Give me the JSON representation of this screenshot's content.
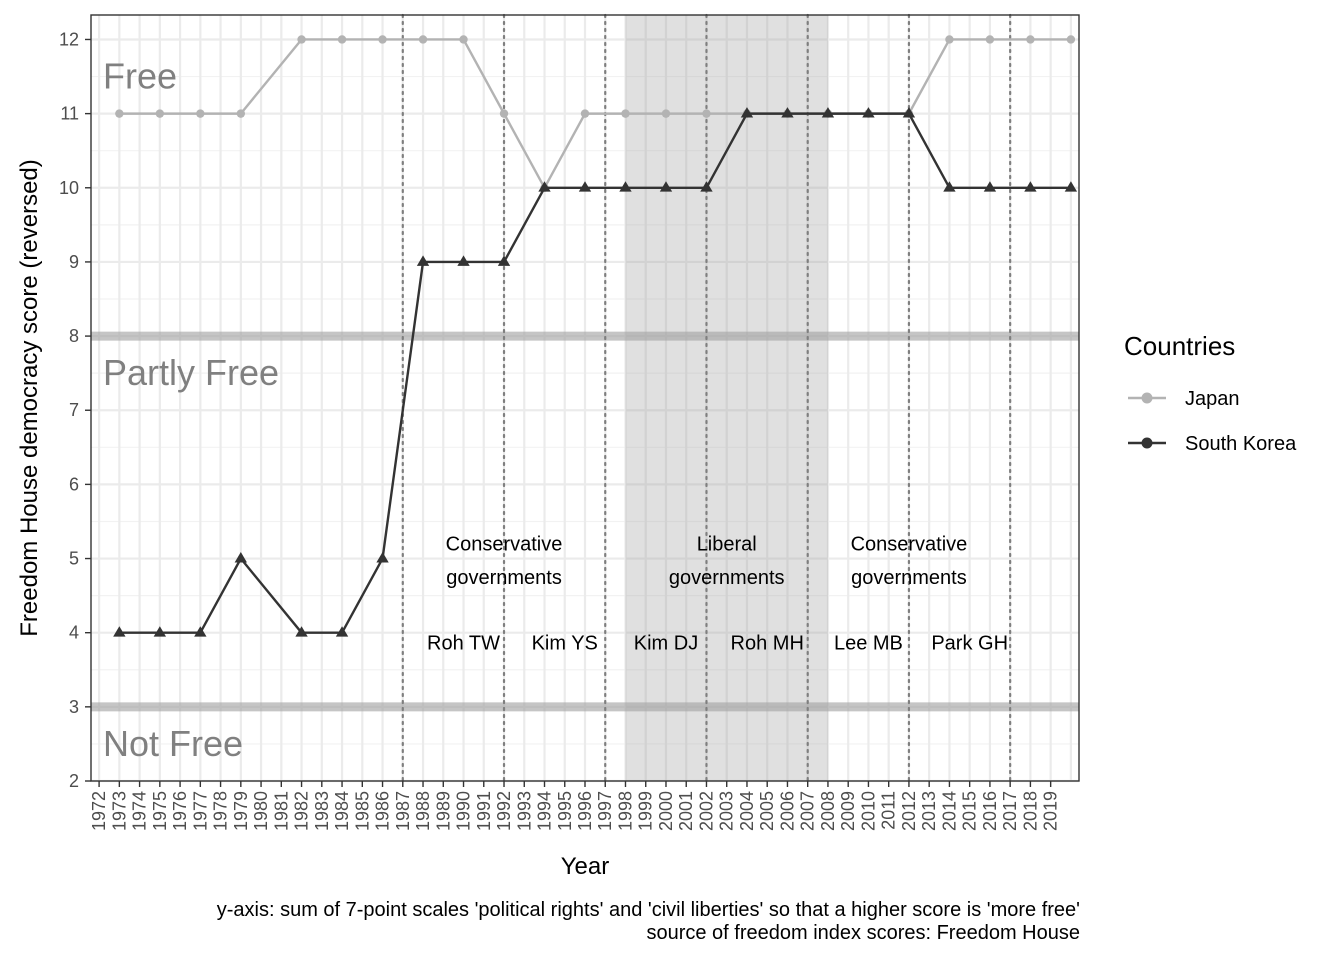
{
  "chart_data": {
    "type": "line",
    "xlabel": "Year",
    "ylabel": "Freedom House democracy score (reversed)",
    "ylim": [
      2,
      12.33
    ],
    "xlim": [
      1971.6,
      2020.4
    ],
    "x_tick_labels": [
      "1972",
      "1973",
      "1974",
      "1975",
      "1976",
      "1977",
      "1978",
      "1979",
      "1980",
      "1981",
      "1982",
      "1983",
      "1984",
      "1985",
      "1986",
      "1987",
      "1988",
      "1989",
      "1990",
      "1991",
      "1992",
      "1993",
      "1994",
      "1995",
      "1996",
      "1997",
      "1998",
      "1999",
      "2000",
      "2001",
      "2002",
      "2003",
      "2004",
      "2005",
      "2006",
      "2007",
      "2008",
      "2009",
      "2010",
      "2011",
      "2012",
      "2013",
      "2014",
      "2015",
      "2016",
      "2017",
      "2018",
      "2019"
    ],
    "y_ticks": [
      2,
      3,
      4,
      5,
      6,
      7,
      8,
      9,
      10,
      11,
      12
    ],
    "grid": true,
    "legend_title": "Countries",
    "legend_position": "right",
    "series": [
      {
        "name": "Japan",
        "color": "#b3b3b3",
        "marker": "circle",
        "x": [
          1973,
          1975,
          1977,
          1979,
          1982,
          1984,
          1986,
          1988,
          1990,
          1992,
          1994,
          1996,
          1998,
          2000,
          2002,
          2004,
          2006,
          2008,
          2010,
          2012,
          2014,
          2016,
          2018,
          2020
        ],
        "y": [
          11,
          11,
          11,
          11,
          12,
          12,
          12,
          12,
          12,
          11,
          10,
          11,
          11,
          11,
          11,
          11,
          11,
          11,
          11,
          11,
          12,
          12,
          12,
          12
        ]
      },
      {
        "name": "South Korea",
        "color": "#333333",
        "marker": "triangle",
        "x": [
          1973,
          1975,
          1977,
          1979,
          1982,
          1984,
          1986,
          1988,
          1990,
          1992,
          1994,
          1996,
          1998,
          2000,
          2002,
          2004,
          2006,
          2008,
          2010,
          2012,
          2014,
          2016,
          2018,
          2020
        ],
        "y": [
          4,
          4,
          4,
          5,
          4,
          4,
          5,
          9,
          9,
          9,
          10,
          10,
          10,
          10,
          10,
          11,
          11,
          11,
          11,
          11,
          10,
          10,
          10,
          10
        ]
      }
    ],
    "threshold_lines": [
      8,
      3
    ],
    "zone_labels": [
      {
        "text": "Free",
        "y": 11.5
      },
      {
        "text": "Partly Free",
        "y": 7.5
      },
      {
        "text": "Not Free",
        "y": 2.5
      }
    ],
    "shaded_period": [
      1998,
      2008
    ],
    "vertical_dotted_lines": [
      1987,
      1992,
      1997,
      2002,
      2007,
      2012,
      2017
    ],
    "government_labels": [
      {
        "line1": "Conservative",
        "line2": "governments",
        "x": 1992
      },
      {
        "line1": "Liberal",
        "line2": "governments",
        "x": 2003
      },
      {
        "line1": "Conservative",
        "line2": "governments",
        "x": 2012
      }
    ],
    "president_labels": [
      {
        "text": "Roh TW",
        "x": 1990
      },
      {
        "text": "Kim YS",
        "x": 1995
      },
      {
        "text": "Kim DJ",
        "x": 2000
      },
      {
        "text": "Roh MH",
        "x": 2005
      },
      {
        "text": "Lee MB",
        "x": 2010
      },
      {
        "text": "Park GH",
        "x": 2015
      }
    ],
    "caption_lines": [
      "y-axis: sum of 7-point scales 'political rights' and 'civil liberties' so that a higher score is 'more free'",
      "source of freedom index scores: Freedom House"
    ]
  }
}
